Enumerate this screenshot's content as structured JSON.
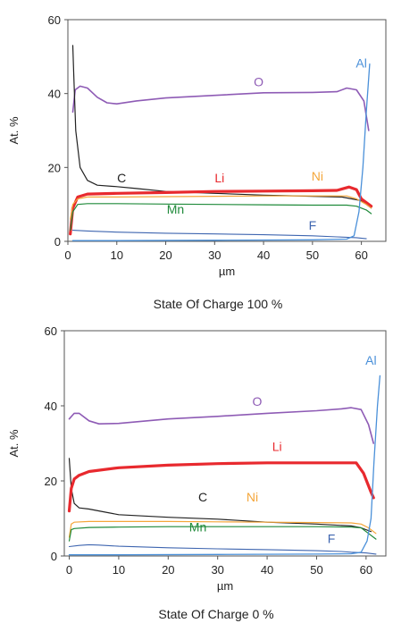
{
  "chart_data": [
    {
      "type": "line",
      "title": "State Of Charge 100 %",
      "xlabel": "µm",
      "ylabel": "At. %",
      "xlim": [
        0,
        65
      ],
      "ylim": [
        0,
        60
      ],
      "xticks": [
        0,
        10,
        20,
        30,
        40,
        50,
        60
      ],
      "yticks": [
        0,
        20,
        40,
        60
      ],
      "grid": false,
      "legend": "none",
      "series": [
        {
          "name": "O",
          "color": "#8e5bb5",
          "width": 1.6,
          "label_at": [
            39,
            42
          ],
          "points": [
            [
              1,
              35
            ],
            [
              1.5,
              41
            ],
            [
              2.5,
              42
            ],
            [
              4,
              41.5
            ],
            [
              6,
              39
            ],
            [
              8,
              37.5
            ],
            [
              10,
              37.2
            ],
            [
              14,
              38
            ],
            [
              20,
              38.8
            ],
            [
              30,
              39.5
            ],
            [
              40,
              40.2
            ],
            [
              50,
              40.3
            ],
            [
              55,
              40.5
            ],
            [
              57,
              41.5
            ],
            [
              59,
              41
            ],
            [
              60.5,
              38
            ],
            [
              61.5,
              30
            ]
          ]
        },
        {
          "name": "C",
          "color": "#222222",
          "width": 1.2,
          "label_at": [
            11,
            16
          ],
          "points": [
            [
              1,
              53
            ],
            [
              1.2,
              45
            ],
            [
              1.6,
              30
            ],
            [
              2.5,
              20
            ],
            [
              4,
              16.5
            ],
            [
              6,
              15.2
            ],
            [
              10,
              14.8
            ],
            [
              14,
              14.3
            ],
            [
              20,
              13.5
            ],
            [
              30,
              13
            ],
            [
              40,
              12.5
            ],
            [
              50,
              12.2
            ],
            [
              56,
              12
            ],
            [
              60,
              11
            ],
            [
              62,
              9
            ]
          ]
        },
        {
          "name": "Li",
          "color": "#e8292e",
          "width": 3.2,
          "label_at": [
            31,
            16
          ],
          "points": [
            [
              0.5,
              2
            ],
            [
              1,
              9
            ],
            [
              2,
              12
            ],
            [
              4,
              12.8
            ],
            [
              10,
              13
            ],
            [
              20,
              13.2
            ],
            [
              30,
              13.5
            ],
            [
              40,
              13.6
            ],
            [
              50,
              13.7
            ],
            [
              55,
              13.8
            ],
            [
              57.5,
              14.7
            ],
            [
              59,
              14
            ],
            [
              60,
              11.5
            ],
            [
              62,
              9.5
            ]
          ]
        },
        {
          "name": "Ni",
          "color": "#f4a63a",
          "width": 1.2,
          "label_at": [
            51,
            16.5
          ],
          "points": [
            [
              0.5,
              6
            ],
            [
              1,
              10
            ],
            [
              2,
              11.5
            ],
            [
              4,
              12
            ],
            [
              10,
              12
            ],
            [
              20,
              12.1
            ],
            [
              30,
              12.2
            ],
            [
              40,
              12.3
            ],
            [
              50,
              12.3
            ],
            [
              57,
              12.3
            ],
            [
              59,
              11.5
            ],
            [
              61,
              10
            ],
            [
              62,
              9
            ]
          ]
        },
        {
          "name": "Mn",
          "color": "#1f8a3a",
          "width": 1.2,
          "label_at": [
            22,
            7.5
          ],
          "points": [
            [
              0.5,
              3
            ],
            [
              1,
              8
            ],
            [
              2,
              10
            ],
            [
              4,
              10.2
            ],
            [
              10,
              10.2
            ],
            [
              20,
              10.1
            ],
            [
              30,
              10
            ],
            [
              40,
              9.9
            ],
            [
              50,
              9.8
            ],
            [
              57,
              9.8
            ],
            [
              59,
              9.5
            ],
            [
              61,
              8.5
            ],
            [
              62,
              7.5
            ]
          ]
        },
        {
          "name": "F",
          "color": "#3f66b0",
          "width": 1.1,
          "label_at": [
            50,
            3.2
          ],
          "points": [
            [
              1,
              3
            ],
            [
              4,
              2.8
            ],
            [
              10,
              2.5
            ],
            [
              20,
              2.2
            ],
            [
              30,
              2
            ],
            [
              40,
              1.8
            ],
            [
              50,
              1.5
            ],
            [
              55,
              1.2
            ],
            [
              59,
              1
            ],
            [
              61,
              0.7
            ]
          ]
        },
        {
          "name": "Al",
          "color": "#4a90d9",
          "width": 1.3,
          "label_at": [
            60,
            47
          ],
          "points": [
            [
              1,
              0.2
            ],
            [
              10,
              0.2
            ],
            [
              30,
              0.3
            ],
            [
              50,
              0.4
            ],
            [
              57,
              0.6
            ],
            [
              58.5,
              1.5
            ],
            [
              59.5,
              8
            ],
            [
              60.3,
              20
            ],
            [
              61,
              35
            ],
            [
              61.7,
              48
            ]
          ]
        }
      ]
    },
    {
      "type": "line",
      "title": "State Of Charge 0 %",
      "xlabel": "µm",
      "ylabel": "At. %",
      "xlim": [
        -1,
        64
      ],
      "ylim": [
        0,
        60
      ],
      "xticks": [
        0,
        10,
        20,
        30,
        40,
        50,
        60
      ],
      "yticks": [
        0,
        20,
        40,
        60
      ],
      "grid": false,
      "legend": "none",
      "series": [
        {
          "name": "O",
          "color": "#8e5bb5",
          "width": 1.6,
          "label_at": [
            38,
            40
          ],
          "points": [
            [
              0,
              36.5
            ],
            [
              1,
              38
            ],
            [
              2,
              38
            ],
            [
              4,
              36
            ],
            [
              6,
              35.2
            ],
            [
              10,
              35.3
            ],
            [
              20,
              36.5
            ],
            [
              30,
              37.2
            ],
            [
              40,
              38
            ],
            [
              50,
              38.7
            ],
            [
              55,
              39.2
            ],
            [
              57,
              39.5
            ],
            [
              59,
              39
            ],
            [
              60.5,
              35
            ],
            [
              61.5,
              30
            ]
          ]
        },
        {
          "name": "C",
          "color": "#222222",
          "width": 1.2,
          "label_at": [
            27,
            14.5
          ],
          "points": [
            [
              0,
              26
            ],
            [
              0.4,
              18
            ],
            [
              1,
              14
            ],
            [
              2,
              12.8
            ],
            [
              4,
              12.5
            ],
            [
              6,
              12
            ],
            [
              10,
              11
            ],
            [
              20,
              10.3
            ],
            [
              30,
              9.8
            ],
            [
              40,
              9
            ],
            [
              50,
              8.5
            ],
            [
              57,
              8
            ],
            [
              59,
              7.5
            ],
            [
              61,
              6.5
            ]
          ]
        },
        {
          "name": "Li",
          "color": "#e8292e",
          "width": 3.2,
          "label_at": [
            42,
            28
          ],
          "points": [
            [
              0,
              12
            ],
            [
              0.4,
              18
            ],
            [
              1,
              20.5
            ],
            [
              2,
              21.5
            ],
            [
              4,
              22.5
            ],
            [
              10,
              23.5
            ],
            [
              20,
              24.2
            ],
            [
              30,
              24.6
            ],
            [
              40,
              24.8
            ],
            [
              50,
              24.8
            ],
            [
              55,
              24.8
            ],
            [
              58,
              24.8
            ],
            [
              59.5,
              22
            ],
            [
              61,
              17
            ],
            [
              61.5,
              15.5
            ]
          ]
        },
        {
          "name": "Ni",
          "color": "#f4a63a",
          "width": 1.2,
          "label_at": [
            37,
            14.5
          ],
          "points": [
            [
              0,
              5
            ],
            [
              0.4,
              8.5
            ],
            [
              1,
              9
            ],
            [
              4,
              9.2
            ],
            [
              10,
              9.2
            ],
            [
              20,
              9.2
            ],
            [
              30,
              9.1
            ],
            [
              40,
              9
            ],
            [
              50,
              8.9
            ],
            [
              57,
              8.8
            ],
            [
              59,
              8.5
            ],
            [
              60.5,
              7.5
            ],
            [
              62,
              6
            ]
          ]
        },
        {
          "name": "Mn",
          "color": "#1f8a3a",
          "width": 1.2,
          "label_at": [
            26,
            6.5
          ],
          "points": [
            [
              0,
              4
            ],
            [
              0.4,
              7
            ],
            [
              1,
              7.3
            ],
            [
              4,
              7.6
            ],
            [
              10,
              7.7
            ],
            [
              20,
              7.8
            ],
            [
              30,
              7.8
            ],
            [
              40,
              7.8
            ],
            [
              50,
              7.8
            ],
            [
              57,
              7.7
            ],
            [
              59,
              7.5
            ],
            [
              60.5,
              6
            ],
            [
              62,
              4.5
            ]
          ]
        },
        {
          "name": "F",
          "color": "#3f66b0",
          "width": 1.1,
          "label_at": [
            53,
            3.5
          ],
          "points": [
            [
              0,
              2.5
            ],
            [
              2,
              2.8
            ],
            [
              4,
              3
            ],
            [
              6,
              2.9
            ],
            [
              10,
              2.6
            ],
            [
              20,
              2.2
            ],
            [
              30,
              1.9
            ],
            [
              40,
              1.7
            ],
            [
              50,
              1.4
            ],
            [
              55,
              1.2
            ],
            [
              57,
              1
            ],
            [
              60,
              0.8
            ],
            [
              62,
              0.5
            ]
          ]
        },
        {
          "name": "Al",
          "color": "#4a90d9",
          "width": 1.3,
          "label_at": [
            61,
            51
          ],
          "points": [
            [
              0,
              0.3
            ],
            [
              10,
              0.3
            ],
            [
              30,
              0.4
            ],
            [
              50,
              0.5
            ],
            [
              57,
              0.6
            ],
            [
              59,
              1
            ],
            [
              60.2,
              4
            ],
            [
              61,
              10
            ],
            [
              61.6,
              25
            ],
            [
              62.3,
              40
            ],
            [
              62.8,
              48
            ]
          ]
        }
      ]
    }
  ]
}
